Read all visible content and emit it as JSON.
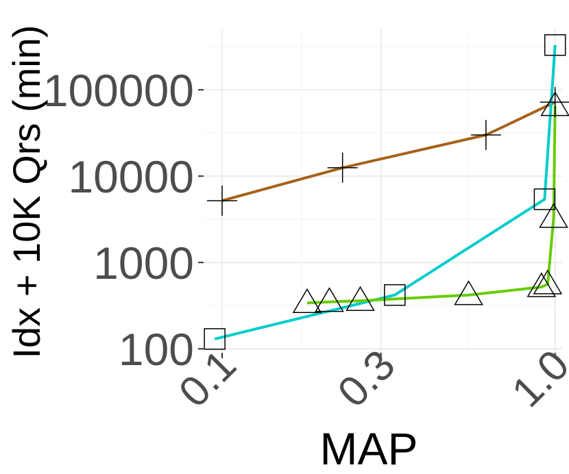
{
  "chart_data": {
    "type": "line",
    "xlabel": "MAP",
    "ylabel": "Idx + 10K Qrs (min)",
    "x_scale": "log",
    "y_scale": "log",
    "xlim": [
      0.088,
      1.05
    ],
    "ylim": [
      90,
      500000
    ],
    "x_ticks": [
      0.1,
      0.3,
      1.0
    ],
    "x_tick_labels": [
      "0.1",
      "0.3",
      "1.0"
    ],
    "y_ticks": [
      100,
      1000,
      10000,
      100000
    ],
    "y_tick_labels": [
      "100",
      "1000",
      "10000",
      "100000"
    ],
    "grid": true,
    "legend": "none",
    "series": [
      {
        "color": "#A6611A",
        "marker": "plus",
        "x": [
          0.1,
          0.23,
          0.62,
          1.0
        ],
        "y": [
          5200,
          12500,
          30000,
          72000
        ]
      },
      {
        "color": "#00CCCC",
        "marker": "square",
        "x": [
          0.095,
          0.33,
          0.93,
          1.0
        ],
        "y": [
          130,
          420,
          5400,
          330000
        ]
      },
      {
        "color": "#66CC00",
        "marker": "triangle",
        "x": [
          0.18,
          0.21,
          0.26,
          0.55,
          0.91,
          0.95,
          0.99,
          1.0
        ],
        "y": [
          340,
          350,
          360,
          420,
          520,
          560,
          3300,
          65000
        ]
      }
    ]
  }
}
